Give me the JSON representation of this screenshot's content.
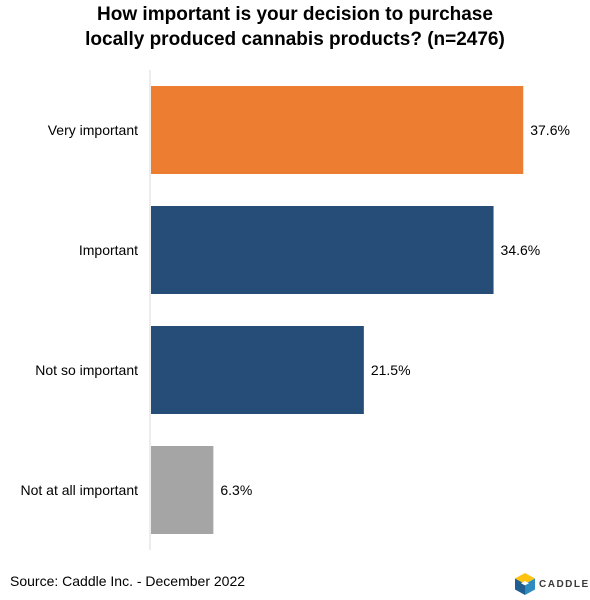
{
  "title_lines": [
    "How important is your decision to purchase",
    "locally produced cannabis products? (n=2476)"
  ],
  "source": "Source: Caddle Inc. - December 2022",
  "logo_text": "CADDLE",
  "colors": {
    "highlight": "#ED7D31",
    "primary": "#264D78",
    "muted": "#A5A5A5",
    "axis": "#D9D9D9"
  },
  "chart_data": {
    "type": "bar",
    "orientation": "horizontal",
    "categories": [
      "Very important",
      "Important",
      "Not so important",
      "Not at all important"
    ],
    "values": [
      37.6,
      34.6,
      21.5,
      6.3
    ],
    "value_labels": [
      "37.6%",
      "34.6%",
      "21.5%",
      "6.3%"
    ],
    "bar_colors": [
      "#ED7D31",
      "#264D78",
      "#264D78",
      "#A5A5A5"
    ],
    "title": "How important is your decision to purchase locally produced cannabis products? (n=2476)",
    "xlabel": "",
    "ylabel": "",
    "grid": false,
    "legend": "none"
  }
}
